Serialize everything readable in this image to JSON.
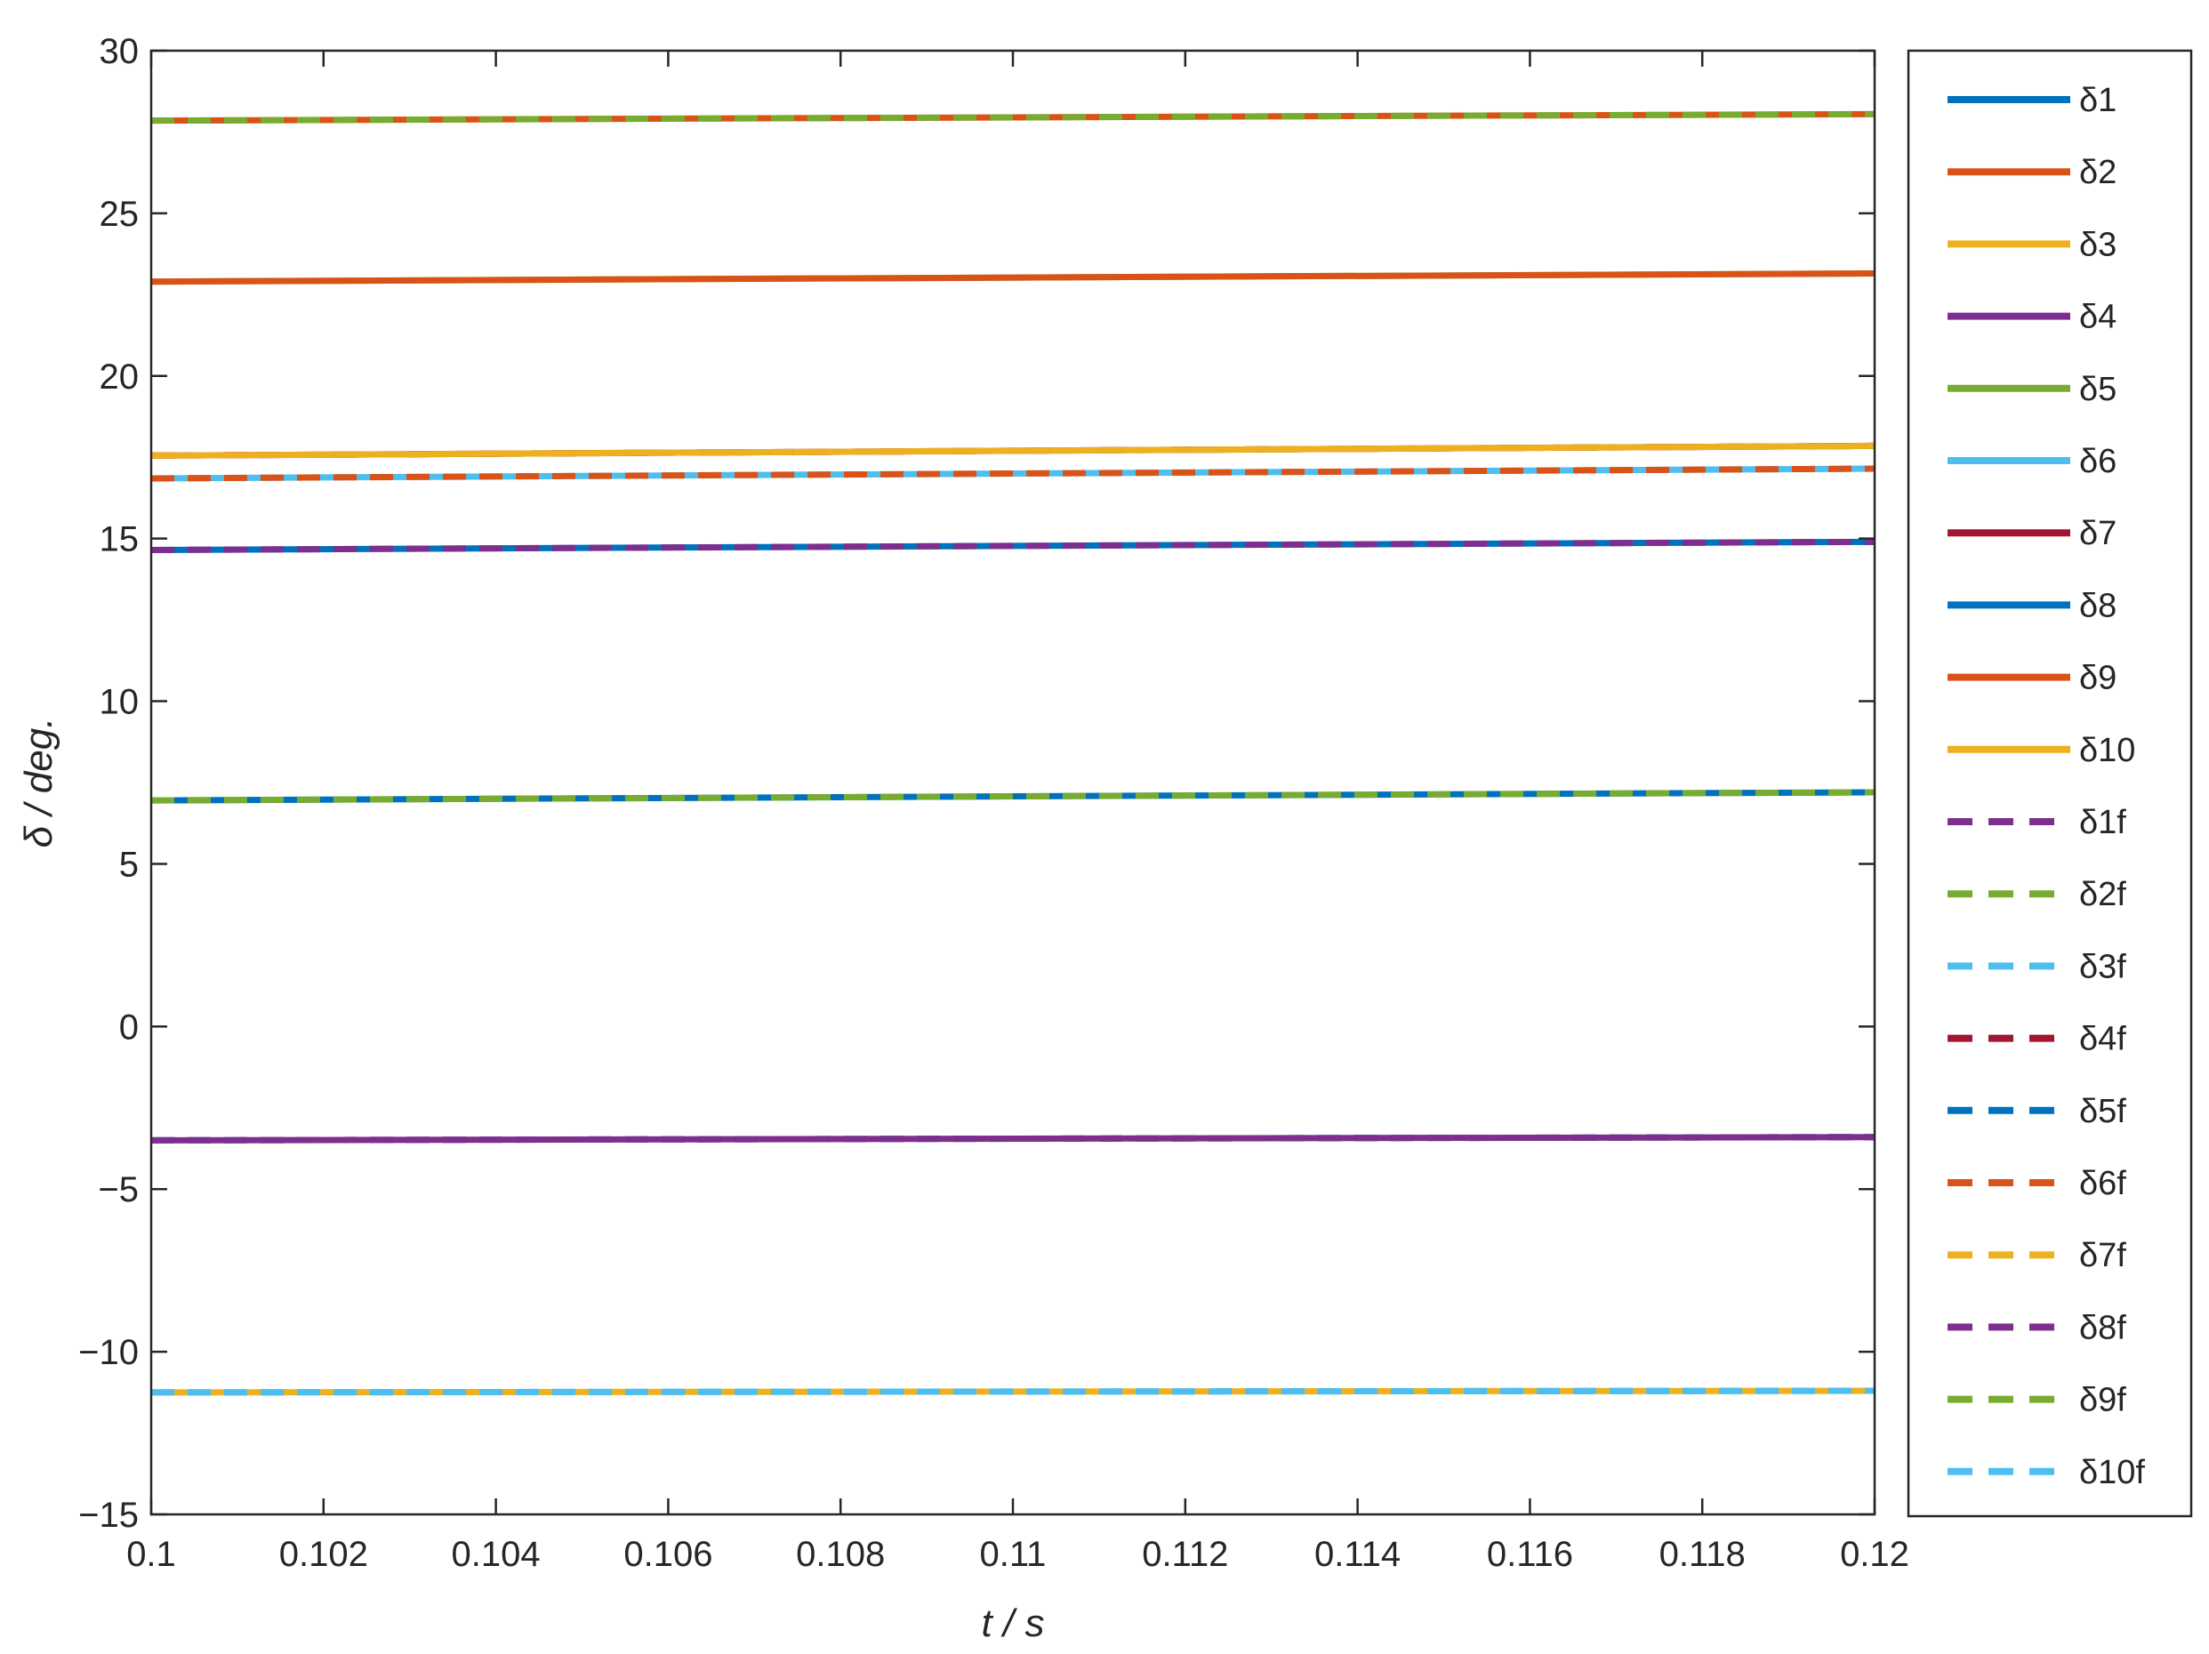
{
  "chart_data": {
    "type": "line",
    "title": "",
    "xlabel": "t / s",
    "ylabel": "δ / deg.",
    "xlim": [
      0.1,
      0.12
    ],
    "ylim": [
      -15,
      30
    ],
    "xticks": [
      0.1,
      0.102,
      0.104,
      0.106,
      0.108,
      0.11,
      0.112,
      0.114,
      0.116,
      0.118,
      0.12
    ],
    "xtick_labels": [
      "0.1",
      "0.102",
      "0.104",
      "0.106",
      "0.108",
      "0.11",
      "0.112",
      "0.114",
      "0.116",
      "0.118",
      "0.12"
    ],
    "yticks": [
      30,
      25,
      20,
      15,
      10,
      5,
      0,
      -5,
      -10,
      -15
    ],
    "ytick_labels": [
      "30",
      "25",
      "20",
      "15",
      "10",
      "5",
      "0",
      "−5",
      "−10",
      "−15"
    ],
    "grid": false,
    "legend_position": "right, outside plot area",
    "x": [
      0.1,
      0.12
    ],
    "series": [
      {
        "name": "δ1",
        "color": "#0072BD",
        "dash": "solid",
        "values": [
          6.95,
          7.2
        ]
      },
      {
        "name": "δ2",
        "color": "#D95319",
        "dash": "solid",
        "values": [
          27.85,
          28.05
        ]
      },
      {
        "name": "δ3",
        "color": "#EDB120",
        "dash": "solid",
        "values": [
          -11.25,
          -11.2
        ]
      },
      {
        "name": "δ4",
        "color": "#7E2F8E",
        "dash": "solid",
        "values": [
          -3.5,
          -3.4
        ]
      },
      {
        "name": "δ5",
        "color": "#77AC30",
        "dash": "solid",
        "values": [
          22.9,
          23.15
        ]
      },
      {
        "name": "δ6",
        "color": "#4DBEEE",
        "dash": "solid",
        "values": [
          16.85,
          17.15
        ]
      },
      {
        "name": "δ7",
        "color": "#A2142F",
        "dash": "solid",
        "values": [
          17.55,
          17.85
        ]
      },
      {
        "name": "δ8",
        "color": "#0072BD",
        "dash": "solid",
        "values": [
          14.65,
          14.9
        ]
      },
      {
        "name": "δ9",
        "color": "#D95319",
        "dash": "solid",
        "values": [
          22.9,
          23.15
        ]
      },
      {
        "name": "δ10",
        "color": "#EDB120",
        "dash": "solid",
        "values": [
          17.55,
          17.85
        ]
      },
      {
        "name": "δ1f",
        "color": "#7E2F8E",
        "dash": "dashed",
        "values": [
          14.65,
          14.9
        ]
      },
      {
        "name": "δ2f",
        "color": "#77AC30",
        "dash": "dashed",
        "values": [
          6.95,
          7.2
        ]
      },
      {
        "name": "δ3f",
        "color": "#4DBEEE",
        "dash": "dashed",
        "values": [
          -11.25,
          -11.2
        ]
      },
      {
        "name": "δ4f",
        "color": "#A2142F",
        "dash": "dashed",
        "values": [
          17.55,
          17.85
        ]
      },
      {
        "name": "δ5f",
        "color": "#0072BD",
        "dash": "dashed",
        "values": [
          -3.5,
          -3.4
        ]
      },
      {
        "name": "δ6f",
        "color": "#D95319",
        "dash": "dashed",
        "values": [
          16.85,
          17.15
        ]
      },
      {
        "name": "δ7f",
        "color": "#EDB120",
        "dash": "dashed",
        "values": [
          17.55,
          17.85
        ]
      },
      {
        "name": "δ8f",
        "color": "#7E2F8E",
        "dash": "dashed",
        "values": [
          -3.5,
          -3.4
        ]
      },
      {
        "name": "δ9f",
        "color": "#77AC30",
        "dash": "dashed",
        "values": [
          27.85,
          28.05
        ]
      },
      {
        "name": "δ10f",
        "color": "#4DBEEE",
        "dash": "dashed",
        "values": [
          -11.25,
          -11.2
        ]
      }
    ]
  }
}
